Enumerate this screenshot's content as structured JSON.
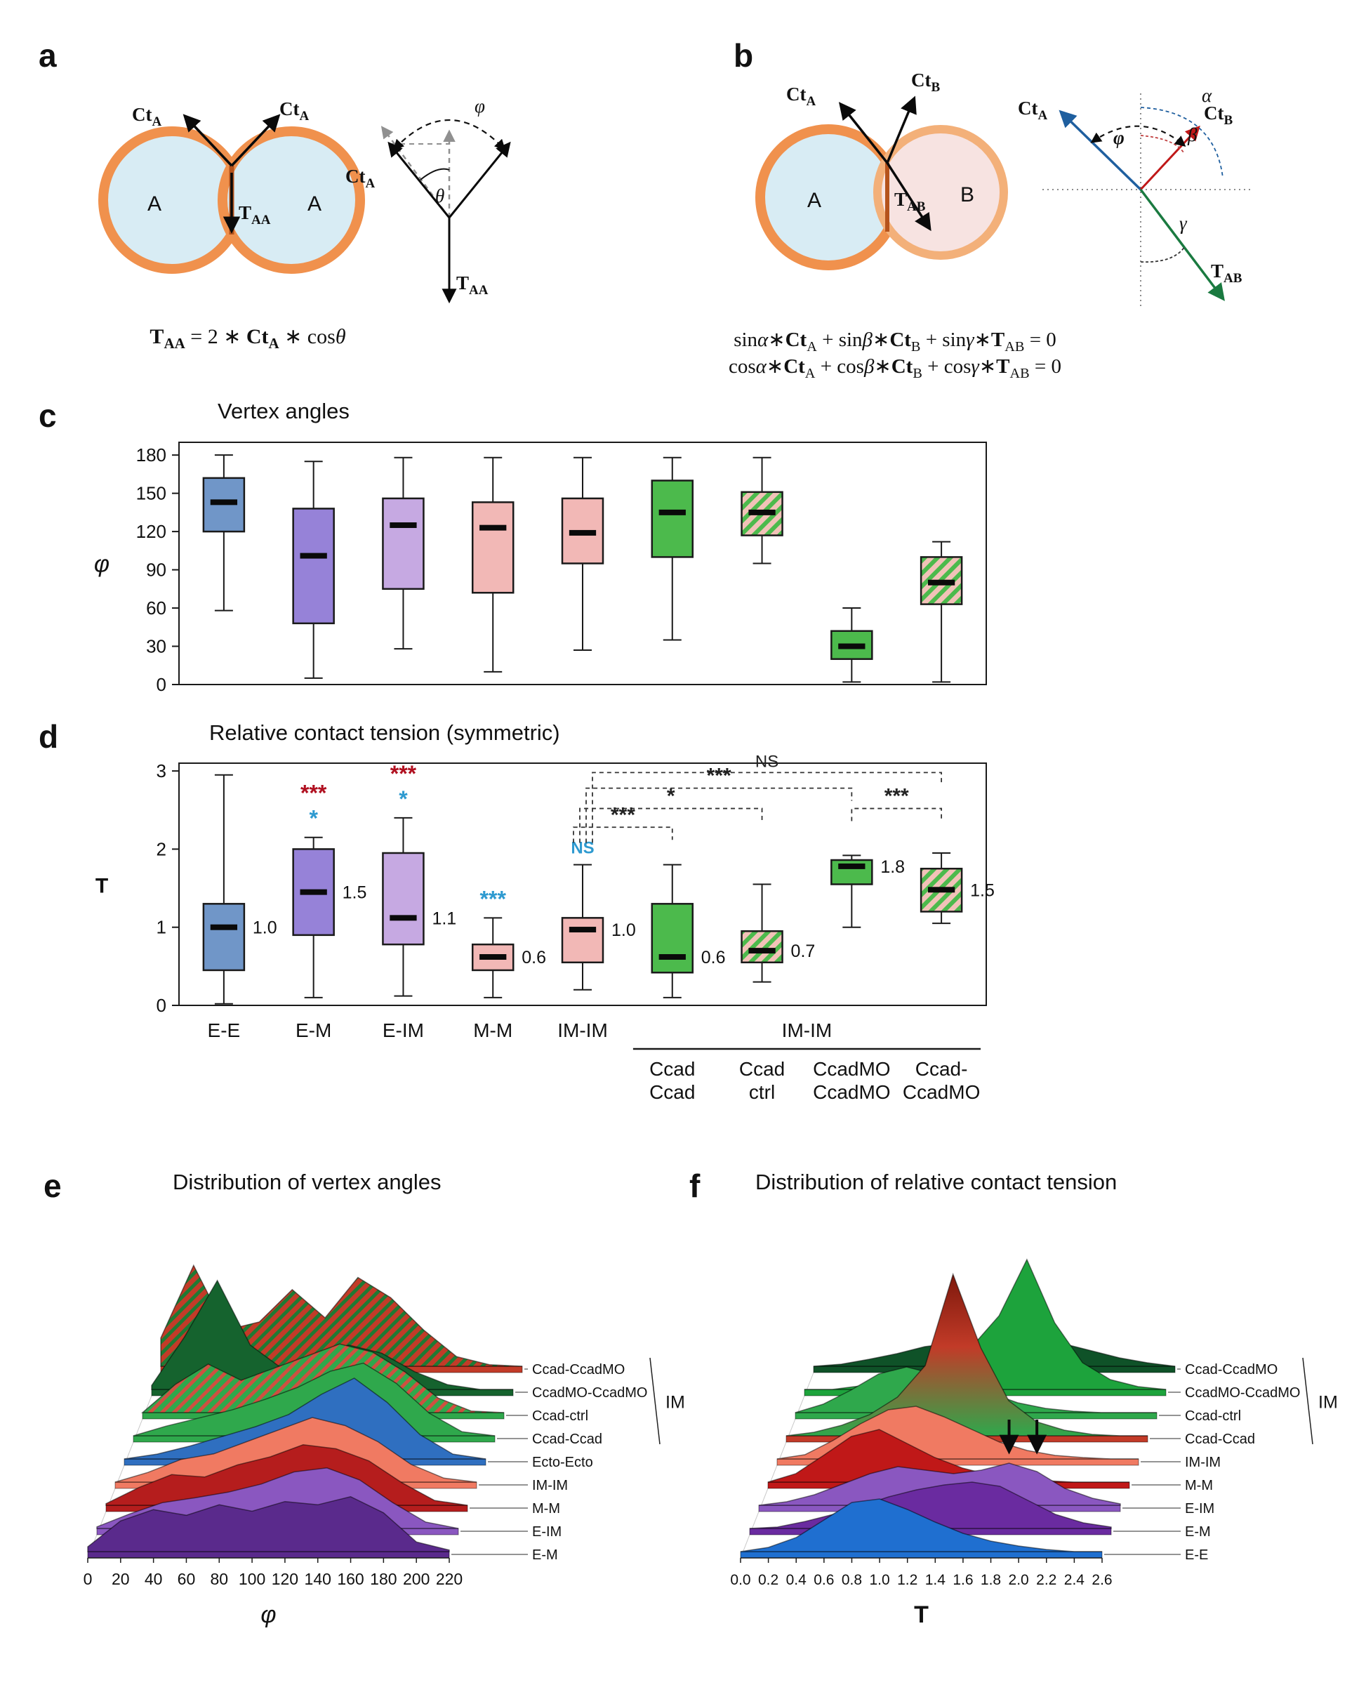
{
  "figure": {
    "panel_letters": {
      "a": "a",
      "b": "b",
      "c": "c",
      "d": "d",
      "e": "e",
      "f": "f"
    }
  },
  "math": {
    "Ct": "Ct",
    "T": "T",
    "A": "A",
    "B": "B",
    "AA": "AA",
    "AB": "AB",
    "phi": "φ",
    "theta": "θ",
    "alpha": "α",
    "beta": "β",
    "gamma": "γ"
  },
  "cells": {
    "a_left": "A",
    "a_right": "A",
    "b_left": "A",
    "b_right": "B"
  },
  "equations": {
    "a": [
      {
        "x": "T",
        "b": 1
      },
      {
        "x": "AA",
        "s": 1,
        "b": 1
      },
      {
        "x": " = 2 ∗ "
      },
      {
        "x": "Ct",
        "b": 1
      },
      {
        "x": "A",
        "s": 1,
        "b": 1
      },
      {
        "x": " ∗ cos"
      },
      {
        "x": "θ",
        "i": 1
      }
    ],
    "b1": [
      {
        "x": "sin"
      },
      {
        "x": "α",
        "i": 1
      },
      {
        "x": "∗"
      },
      {
        "x": "Ct",
        "b": 1
      },
      {
        "x": "A",
        "s": 1
      },
      {
        "x": " + sin"
      },
      {
        "x": "β",
        "i": 1
      },
      {
        "x": "∗"
      },
      {
        "x": "Ct",
        "b": 1
      },
      {
        "x": "B",
        "s": 1
      },
      {
        "x": " + sin"
      },
      {
        "x": "γ",
        "i": 1
      },
      {
        "x": "∗"
      },
      {
        "x": "T",
        "b": 1
      },
      {
        "x": "AB",
        "s": 1
      },
      {
        "x": " = 0"
      }
    ],
    "b2": [
      {
        "x": "cos"
      },
      {
        "x": "α",
        "i": 1
      },
      {
        "x": "∗"
      },
      {
        "x": "Ct",
        "b": 1
      },
      {
        "x": "A",
        "s": 1
      },
      {
        "x": " + cos"
      },
      {
        "x": "β",
        "i": 1
      },
      {
        "x": "∗"
      },
      {
        "x": "Ct",
        "b": 1
      },
      {
        "x": "B",
        "s": 1
      },
      {
        "x": " + cos"
      },
      {
        "x": "γ",
        "i": 1
      },
      {
        "x": "∗"
      },
      {
        "x": "T",
        "b": 1
      },
      {
        "x": "AB",
        "s": 1
      },
      {
        "x": " = 0"
      }
    ]
  },
  "colors": {
    "box_blue": "#7096c8",
    "box_purple": "#9682d8",
    "box_lpurple": "#c6a9e2",
    "box_pink": "#f2b8b6",
    "box_green": "#4cba4c",
    "hatch_bg": "#f2c2b8",
    "hatch_stripe": "#4cba4c",
    "star_red": "#b01020",
    "star_blue": "#2e9ad0",
    "membrane": "#f0914d",
    "membrane_b": "#f3b079",
    "cell_a_fill": "#d8ecf4",
    "cell_b_fill": "#f7e3e1",
    "contact": "#b5531c",
    "vec_blue": "#1f5f9f",
    "vec_red": "#c01818",
    "vec_green": "#1a7a40",
    "ridge_hatch_red_bg": "#c23b28",
    "ridge_hatch_green": "#1e7a34",
    "ridge_hatch_green_bg": "#2fa84c",
    "ridge_hatch_red": "#cf5040",
    "grad_top": "#7d180c",
    "grad_mid": "#c23b28",
    "grad_bot": "#2fa84c"
  },
  "chart_data": [
    {
      "panel": "c",
      "type": "boxplot",
      "title": "Vertex angles",
      "ylabel": "φ",
      "ylabel_italic": true,
      "ylim": [
        0,
        190
      ],
      "yticks": [
        0,
        30,
        60,
        90,
        120,
        150,
        180
      ],
      "boxes": [
        {
          "name": "E-E",
          "fill": "blue",
          "lo": 58,
          "q1": 120,
          "med": 143,
          "q3": 162,
          "hi": 180
        },
        {
          "name": "E-M",
          "fill": "purple",
          "lo": 5,
          "q1": 48,
          "med": 101,
          "q3": 138,
          "hi": 175
        },
        {
          "name": "E-IM",
          "fill": "lpurple",
          "lo": 28,
          "q1": 75,
          "med": 125,
          "q3": 146,
          "hi": 178
        },
        {
          "name": "M-M",
          "fill": "pink",
          "lo": 10,
          "q1": 72,
          "med": 123,
          "q3": 143,
          "hi": 178
        },
        {
          "name": "IM-IM",
          "fill": "pink",
          "lo": 27,
          "q1": 95,
          "med": 119,
          "q3": 146,
          "hi": 178
        },
        {
          "name": "Ccad-Ccad",
          "fill": "green",
          "lo": 35,
          "q1": 100,
          "med": 135,
          "q3": 160,
          "hi": 178
        },
        {
          "name": "Ccad-ctrl",
          "fill": "hatch",
          "lo": 95,
          "q1": 117,
          "med": 135,
          "q3": 151,
          "hi": 178
        },
        {
          "name": "CcadMO-CcadMO",
          "fill": "green",
          "lo": 2,
          "q1": 20,
          "med": 30,
          "q3": 42,
          "hi": 60
        },
        {
          "name": "Ccad-CcadMO",
          "fill": "hatch",
          "lo": 2,
          "q1": 63,
          "med": 80,
          "q3": 100,
          "hi": 112
        }
      ]
    },
    {
      "panel": "d",
      "type": "boxplot",
      "title": "Relative contact tension (symmetric)",
      "ylabel": "T",
      "ylabel_italic": false,
      "ylim": [
        0,
        3.1
      ],
      "yticks": [
        0,
        1,
        2,
        3
      ],
      "boxes": [
        {
          "name": "E-E",
          "fill": "blue",
          "lo": 0.02,
          "q1": 0.45,
          "med": 1.0,
          "q3": 1.3,
          "hi": 2.95,
          "value_label": "1.0"
        },
        {
          "name": "E-M",
          "fill": "purple",
          "lo": 0.1,
          "q1": 0.9,
          "med": 1.45,
          "q3": 2.0,
          "hi": 2.15,
          "value_label": "1.5",
          "stars": [
            {
              "text": "***",
              "color": "red"
            },
            {
              "text": "*",
              "color": "blue"
            }
          ]
        },
        {
          "name": "E-IM",
          "fill": "lpurple",
          "lo": 0.12,
          "q1": 0.78,
          "med": 1.12,
          "q3": 1.95,
          "hi": 2.4,
          "value_label": "1.1",
          "stars": [
            {
              "text": "***",
              "color": "red"
            },
            {
              "text": "*",
              "color": "blue"
            }
          ]
        },
        {
          "name": "M-M",
          "fill": "pink",
          "lo": 0.1,
          "q1": 0.45,
          "med": 0.62,
          "q3": 0.78,
          "hi": 1.12,
          "value_label": "0.6",
          "stars": [
            {
              "text": "***",
              "color": "blue"
            }
          ]
        },
        {
          "name": "IM-IM",
          "fill": "pink",
          "lo": 0.2,
          "q1": 0.55,
          "med": 0.97,
          "q3": 1.12,
          "hi": 1.8,
          "value_label": "1.0",
          "stars": [
            {
              "text": "NS",
              "color": "blue"
            }
          ]
        },
        {
          "name": "Ccad-Ccad",
          "fill": "green",
          "lo": 0.1,
          "q1": 0.42,
          "med": 0.62,
          "q3": 1.3,
          "hi": 1.8,
          "value_label": "0.6"
        },
        {
          "name": "Ccad-ctrl",
          "fill": "hatch",
          "lo": 0.3,
          "q1": 0.55,
          "med": 0.7,
          "q3": 0.95,
          "hi": 1.55,
          "value_label": "0.7"
        },
        {
          "name": "CcadMO-CcadMO",
          "fill": "green",
          "lo": 1.0,
          "q1": 1.55,
          "med": 1.78,
          "q3": 1.86,
          "hi": 1.92,
          "value_label": "1.8"
        },
        {
          "name": "Ccad-CcadMO",
          "fill": "hatch",
          "lo": 1.05,
          "q1": 1.2,
          "med": 1.48,
          "q3": 1.75,
          "hi": 1.95,
          "value_label": "1.5"
        }
      ],
      "x_labels": [
        "E-E",
        "E-M",
        "E-IM",
        "M-M",
        "IM-IM"
      ],
      "group": {
        "label": "IM-IM",
        "span": [
          6,
          9
        ],
        "sub_labels": [
          [
            "Ccad",
            "Ccad"
          ],
          [
            "Ccad",
            "ctrl"
          ],
          [
            "CcadMO",
            "CcadMO"
          ],
          [
            "Ccad-",
            "CcadMO"
          ]
        ]
      },
      "brackets": [
        {
          "a": 5,
          "b": 9,
          "label": "NS",
          "y": 2.98,
          "a_off": 14,
          "a_drop_to": 2.08
        },
        {
          "a": 5,
          "b": 8,
          "label": "***",
          "y": 2.78,
          "a_off": 5,
          "a_drop_to": 2.08
        },
        {
          "a": 5,
          "b": 7,
          "label": "*",
          "y": 2.52,
          "a_off": -4,
          "a_drop_to": 2.08
        },
        {
          "a": 5,
          "b": 6,
          "label": "***",
          "y": 2.28,
          "a_off": -13,
          "a_drop_to": 2.08
        },
        {
          "a": 8,
          "b": 9,
          "label": "***",
          "y": 2.52,
          "a_off": 0
        }
      ]
    },
    {
      "panel": "e",
      "type": "ridgeline",
      "title": "Distribution of vertex angles",
      "xlabel": "φ",
      "xlabel_italic": true,
      "xlim": [
        0,
        220
      ],
      "xticks": [
        0,
        20,
        40,
        60,
        80,
        100,
        120,
        140,
        160,
        180,
        200,
        220
      ],
      "bracket_label": "IM",
      "bracket_rows": 4,
      "series": [
        {
          "name": "Ccad-CcadMO",
          "color": "#c23b28",
          "hatch": "greenOnRed",
          "values": [
            0.35,
            1.25,
            0.45,
            0.55,
            0.95,
            0.6,
            1.1,
            0.85,
            0.45,
            0.12,
            0.02,
            0
          ]
        },
        {
          "name": "CcadMO-CcadMO",
          "color": "#15632e",
          "values": [
            0.05,
            0.65,
            1.35,
            0.55,
            0.25,
            0.4,
            0.55,
            0.45,
            0.22,
            0.06,
            0,
            0
          ]
        },
        {
          "name": "Ccad-ctrl",
          "color": "#2fa84c",
          "hatch": "redOnGreen",
          "values": [
            0,
            0.35,
            0.6,
            0.4,
            0.55,
            0.7,
            0.85,
            0.75,
            0.5,
            0.18,
            0.02,
            0
          ]
        },
        {
          "name": "Ccad-Ccad",
          "color": "#2fa84c",
          "values": [
            0,
            0.12,
            0.22,
            0.32,
            0.45,
            0.6,
            0.8,
            0.9,
            0.65,
            0.28,
            0.05,
            0
          ]
        },
        {
          "name": "Ecto-Ecto",
          "color": "#2f6fc0",
          "values": [
            0,
            0.06,
            0.16,
            0.28,
            0.4,
            0.55,
            0.8,
            1.0,
            0.7,
            0.3,
            0.06,
            0
          ]
        },
        {
          "name": "IM-IM",
          "color": "#f07a62",
          "values": [
            0,
            0.12,
            0.28,
            0.35,
            0.5,
            0.65,
            0.8,
            0.7,
            0.5,
            0.22,
            0.05,
            0
          ]
        },
        {
          "name": "M-M",
          "color": "#b51d1d",
          "values": [
            0.02,
            0.22,
            0.38,
            0.35,
            0.5,
            0.6,
            0.75,
            0.7,
            0.55,
            0.28,
            0.06,
            0
          ]
        },
        {
          "name": "E-IM",
          "color": "#8a57c0",
          "values": [
            0.02,
            0.18,
            0.32,
            0.38,
            0.45,
            0.55,
            0.7,
            0.75,
            0.6,
            0.32,
            0.08,
            0
          ]
        },
        {
          "name": "E-M",
          "color": "#5a2a8c",
          "values": [
            0.06,
            0.38,
            0.52,
            0.45,
            0.58,
            0.5,
            0.62,
            0.58,
            0.68,
            0.48,
            0.12,
            0.02
          ]
        }
      ]
    },
    {
      "panel": "f",
      "type": "ridgeline",
      "title": "Distribution of relative contact tension",
      "xlabel": "T",
      "xlabel_italic": false,
      "xlim": [
        0,
        2.6
      ],
      "xticks": [
        "0.0",
        "0.2",
        "0.4",
        "0.6",
        "0.8",
        "1.0",
        "1.2",
        "1.4",
        "1.6",
        "1.8",
        "2.0",
        "2.2",
        "2.4",
        "2.6"
      ],
      "bracket_label": "IM",
      "bracket_rows": 4,
      "arrow_row": "E-IM",
      "arrows": [
        {
          "x": 1.8
        },
        {
          "x": 2.0
        }
      ],
      "series": [
        {
          "name": "Ccad-CcadMO",
          "color": "#0f5228",
          "values": [
            0,
            0.03,
            0.1,
            0.18,
            0.28,
            0.33,
            0.38,
            0.42,
            0.38,
            0.32,
            0.22,
            0.12,
            0.05,
            0
          ]
        },
        {
          "name": "CcadMO-CcadMO",
          "color": "#1da33c",
          "values": [
            0,
            0,
            0.05,
            0.1,
            0.2,
            0.35,
            0.6,
            1.05,
            1.85,
            0.95,
            0.38,
            0.14,
            0.04,
            0
          ]
        },
        {
          "name": "Ccad-ctrl",
          "color": "#2fa84c",
          "values": [
            0,
            0.12,
            0.32,
            0.55,
            0.65,
            0.55,
            0.42,
            0.28,
            0.14,
            0.06,
            0.02,
            0,
            0,
            0
          ]
        },
        {
          "name": "Ccad-Ccad",
          "color": "#c23b28",
          "gradient": true,
          "values": [
            0,
            0.05,
            0.15,
            0.3,
            0.55,
            1.0,
            2.3,
            1.25,
            0.5,
            0.2,
            0.08,
            0.02,
            0,
            0
          ]
        },
        {
          "name": "IM-IM",
          "color": "#f07a62",
          "values": [
            0,
            0.06,
            0.26,
            0.5,
            0.7,
            0.75,
            0.6,
            0.42,
            0.24,
            0.12,
            0.05,
            0.02,
            0,
            0
          ]
        },
        {
          "name": "M-M",
          "color": "#c01818",
          "values": [
            0,
            0.12,
            0.38,
            0.65,
            0.75,
            0.55,
            0.35,
            0.2,
            0.1,
            0.05,
            0.02,
            0,
            0,
            0
          ]
        },
        {
          "name": "E-IM",
          "color": "#8a57c0",
          "values": [
            0,
            0.05,
            0.15,
            0.3,
            0.45,
            0.55,
            0.5,
            0.45,
            0.5,
            0.6,
            0.48,
            0.24,
            0.1,
            0.02
          ]
        },
        {
          "name": "E-M",
          "color": "#6a2ba0",
          "values": [
            0,
            0.02,
            0.1,
            0.2,
            0.32,
            0.45,
            0.55,
            0.62,
            0.66,
            0.6,
            0.4,
            0.2,
            0.08,
            0.02
          ]
        },
        {
          "name": "E-E",
          "color": "#1f6fd0",
          "values": [
            0,
            0.06,
            0.2,
            0.45,
            0.7,
            0.75,
            0.6,
            0.42,
            0.26,
            0.15,
            0.08,
            0.03,
            0,
            0
          ]
        }
      ]
    }
  ]
}
